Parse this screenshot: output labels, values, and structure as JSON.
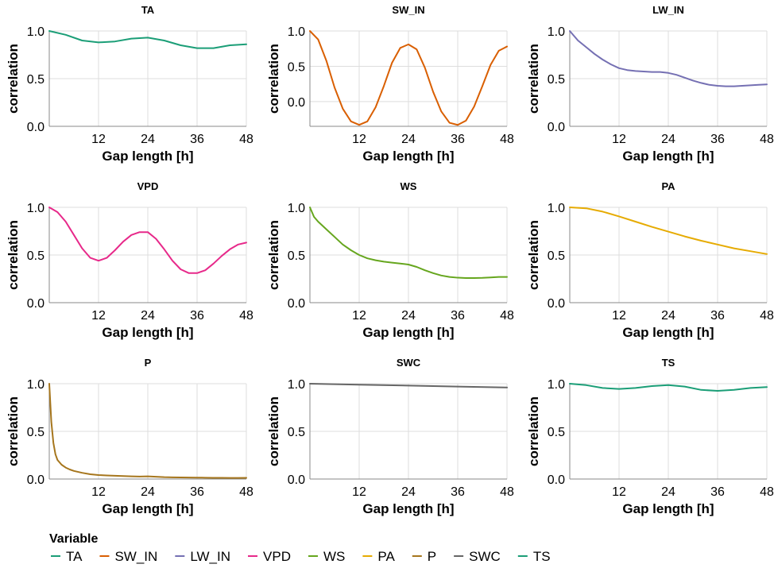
{
  "chart_data": {
    "type": "line",
    "layout": "small-multiples-3x3",
    "xlabel": "Gap length [h]",
    "ylabel": "correlation",
    "x_ticks": [
      12,
      24,
      36,
      48
    ],
    "xlim": [
      0,
      48
    ],
    "grid": true,
    "legend": {
      "title": "Variable",
      "position": "bottom-left",
      "entries": [
        "TA",
        "SW_IN",
        "LW_IN",
        "VPD",
        "WS",
        "PA",
        "P",
        "SWC",
        "TS"
      ]
    },
    "panels": [
      {
        "title": "TA",
        "color": "#1b9e77",
        "ylim": [
          0,
          1
        ],
        "yticks": [
          0.0,
          0.5,
          1.0
        ],
        "x": [
          0,
          4,
          8,
          12,
          16,
          20,
          24,
          28,
          32,
          36,
          40,
          44,
          48
        ],
        "y": [
          1.0,
          0.96,
          0.9,
          0.88,
          0.89,
          0.92,
          0.93,
          0.9,
          0.85,
          0.82,
          0.82,
          0.85,
          0.86
        ]
      },
      {
        "title": "SW_IN",
        "color": "#d95f02",
        "ylim": [
          -0.35,
          1
        ],
        "yticks": [
          0.0,
          0.5,
          1.0
        ],
        "x": [
          0,
          2,
          4,
          6,
          8,
          10,
          12,
          14,
          16,
          18,
          20,
          22,
          24,
          26,
          28,
          30,
          32,
          34,
          36,
          38,
          40,
          42,
          44,
          46,
          48
        ],
        "y": [
          1.0,
          0.88,
          0.58,
          0.2,
          -0.1,
          -0.28,
          -0.33,
          -0.28,
          -0.08,
          0.22,
          0.55,
          0.76,
          0.81,
          0.74,
          0.48,
          0.14,
          -0.14,
          -0.3,
          -0.33,
          -0.27,
          -0.07,
          0.22,
          0.52,
          0.72,
          0.78
        ]
      },
      {
        "title": "LW_IN",
        "color": "#7570b3",
        "ylim": [
          0,
          1
        ],
        "yticks": [
          0.0,
          0.5,
          1.0
        ],
        "x": [
          0,
          2,
          4,
          6,
          8,
          10,
          12,
          14,
          16,
          18,
          20,
          22,
          24,
          26,
          28,
          30,
          32,
          34,
          36,
          38,
          40,
          42,
          44,
          46,
          48
        ],
        "y": [
          1.0,
          0.9,
          0.83,
          0.76,
          0.7,
          0.65,
          0.61,
          0.59,
          0.58,
          0.575,
          0.57,
          0.57,
          0.56,
          0.54,
          0.51,
          0.48,
          0.455,
          0.435,
          0.425,
          0.42,
          0.42,
          0.425,
          0.43,
          0.435,
          0.44
        ]
      },
      {
        "title": "VPD",
        "color": "#e7298a",
        "ylim": [
          0,
          1
        ],
        "yticks": [
          0.0,
          0.5,
          1.0
        ],
        "x": [
          0,
          2,
          4,
          6,
          8,
          10,
          12,
          14,
          16,
          18,
          20,
          22,
          24,
          26,
          28,
          30,
          32,
          34,
          36,
          38,
          40,
          42,
          44,
          46,
          48
        ],
        "y": [
          1.0,
          0.95,
          0.85,
          0.71,
          0.57,
          0.47,
          0.44,
          0.47,
          0.55,
          0.64,
          0.71,
          0.74,
          0.74,
          0.67,
          0.56,
          0.44,
          0.35,
          0.31,
          0.31,
          0.34,
          0.41,
          0.49,
          0.56,
          0.61,
          0.63
        ]
      },
      {
        "title": "WS",
        "color": "#66a61e",
        "ylim": [
          0,
          1
        ],
        "yticks": [
          0.0,
          0.5,
          1.0
        ],
        "x": [
          0,
          1,
          2,
          4,
          6,
          8,
          10,
          12,
          14,
          16,
          18,
          20,
          22,
          24,
          26,
          28,
          30,
          32,
          34,
          36,
          38,
          40,
          42,
          44,
          46,
          48
        ],
        "y": [
          1.0,
          0.9,
          0.85,
          0.77,
          0.69,
          0.61,
          0.55,
          0.5,
          0.465,
          0.445,
          0.43,
          0.42,
          0.41,
          0.4,
          0.375,
          0.34,
          0.31,
          0.285,
          0.27,
          0.262,
          0.258,
          0.258,
          0.26,
          0.265,
          0.27,
          0.27
        ]
      },
      {
        "title": "PA",
        "color": "#e6ab02",
        "ylim": [
          0,
          1
        ],
        "yticks": [
          0.0,
          0.5,
          1.0
        ],
        "x": [
          0,
          4,
          8,
          12,
          16,
          20,
          24,
          28,
          32,
          36,
          40,
          44,
          48
        ],
        "y": [
          1.0,
          0.99,
          0.955,
          0.905,
          0.85,
          0.795,
          0.745,
          0.695,
          0.65,
          0.61,
          0.57,
          0.54,
          0.51
        ]
      },
      {
        "title": "P",
        "color": "#a6761d",
        "ylim": [
          0,
          1
        ],
        "yticks": [
          0.0,
          0.5,
          1.0
        ],
        "x": [
          0,
          0.5,
          1,
          1.5,
          2,
          3,
          4,
          5,
          6,
          8,
          10,
          12,
          14,
          16,
          18,
          20,
          22,
          24,
          26,
          28,
          30,
          32,
          34,
          36,
          38,
          40,
          42,
          44,
          46,
          48
        ],
        "y": [
          1.0,
          0.6,
          0.38,
          0.26,
          0.2,
          0.15,
          0.12,
          0.1,
          0.085,
          0.065,
          0.05,
          0.042,
          0.038,
          0.034,
          0.031,
          0.028,
          0.026,
          0.028,
          0.024,
          0.02,
          0.018,
          0.017,
          0.016,
          0.015,
          0.014,
          0.013,
          0.012,
          0.011,
          0.011,
          0.012
        ]
      },
      {
        "title": "SWC",
        "color": "#666666",
        "ylim": [
          0,
          1
        ],
        "yticks": [
          0.0,
          0.5,
          1.0
        ],
        "x": [
          0,
          12,
          24,
          36,
          48
        ],
        "y": [
          1.0,
          0.99,
          0.98,
          0.97,
          0.96
        ]
      },
      {
        "title": "TS",
        "color": "#1b9e77",
        "ylim": [
          0,
          1
        ],
        "yticks": [
          0.0,
          0.5,
          1.0
        ],
        "x": [
          0,
          4,
          8,
          12,
          16,
          20,
          24,
          28,
          32,
          36,
          40,
          44,
          48
        ],
        "y": [
          1.0,
          0.985,
          0.955,
          0.945,
          0.955,
          0.975,
          0.985,
          0.97,
          0.935,
          0.925,
          0.935,
          0.955,
          0.965
        ]
      }
    ]
  }
}
